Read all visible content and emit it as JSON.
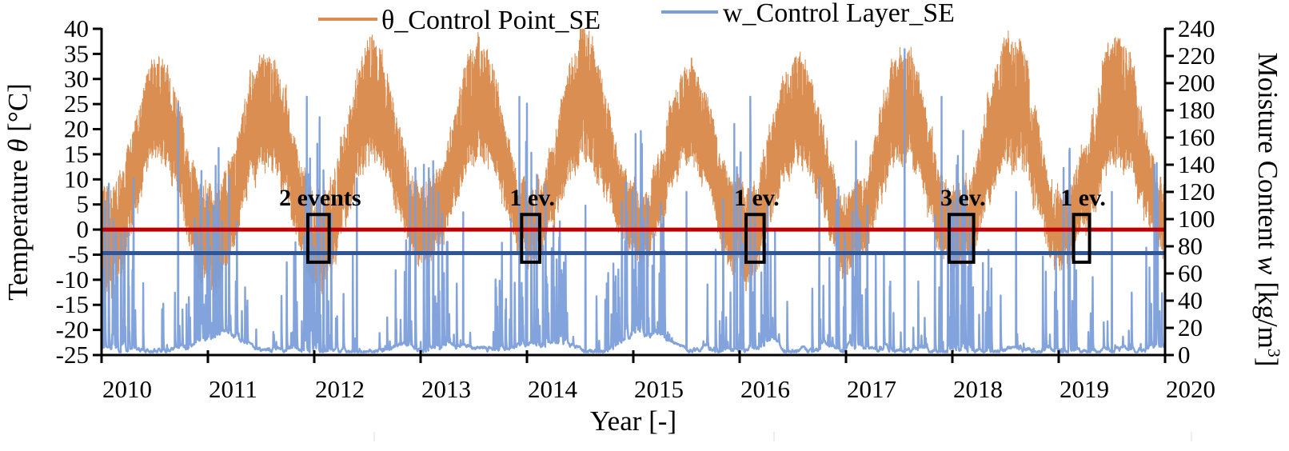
{
  "chart_data": {
    "type": "line",
    "title": "",
    "xlabel": "Year [-]",
    "ylabel_left": {
      "pre": "Temperature ",
      "symbol": "θ",
      "post": " [°C]"
    },
    "ylabel_right": {
      "pre": "Moisture Content ",
      "symbol": "w",
      "post": " [kg/m",
      "sup": "3",
      "end": "]"
    },
    "x_ticks": [
      "2010",
      "2011",
      "2012",
      "2013",
      "2014",
      "2015",
      "2016",
      "2017",
      "2018",
      "2019",
      "2020"
    ],
    "xlim": [
      2010,
      2020
    ],
    "ylim_left": [
      -25,
      40
    ],
    "yticks_left": [
      "40",
      "35",
      "30",
      "25",
      "20",
      "15",
      "10",
      "5",
      "0",
      "-5",
      "-10",
      "-15",
      "-20",
      "-25"
    ],
    "ylim_right": [
      0,
      240
    ],
    "yticks_right": [
      "240",
      "220",
      "200",
      "180",
      "160",
      "140",
      "120",
      "100",
      "80",
      "60",
      "40",
      "20",
      "0"
    ],
    "grid": false,
    "legend_position": "top",
    "series": [
      {
        "name": "θ_Control Point_SE",
        "axis": "left",
        "color": "#DA8E52",
        "annual_summer_peak": [
          33,
          36,
          37,
          37,
          40,
          33,
          35,
          35,
          39,
          39
        ],
        "annual_winter_min": [
          -14,
          -12,
          -11,
          -8,
          -6,
          -6,
          -11,
          -8,
          -8,
          -7,
          -6
        ],
        "summer_daily_min": 13,
        "winter_daily_max": 8
      },
      {
        "name": "w_Control Layer_SE",
        "axis": "right",
        "color": "#7B9ED9",
        "baseline_range": [
          2,
          20
        ],
        "major_peaks": [
          [
            2010.3,
            130
          ],
          [
            2010.72,
            185
          ],
          [
            2011.05,
            110
          ],
          [
            2011.93,
            190
          ],
          [
            2012.05,
            175
          ],
          [
            2012.4,
            130
          ],
          [
            2012.9,
            125
          ],
          [
            2013.4,
            105
          ],
          [
            2013.93,
            190
          ],
          [
            2014.0,
            185
          ],
          [
            2014.55,
            110
          ],
          [
            2015.1,
            100
          ],
          [
            2015.5,
            120
          ],
          [
            2015.95,
            170
          ],
          [
            2016.1,
            190
          ],
          [
            2016.75,
            130
          ],
          [
            2017.2,
            110
          ],
          [
            2017.55,
            225
          ],
          [
            2017.9,
            190
          ],
          [
            2018.1,
            165
          ],
          [
            2018.6,
            120
          ],
          [
            2019.1,
            150
          ],
          [
            2019.5,
            120
          ],
          [
            2019.9,
            140
          ]
        ]
      }
    ],
    "thresholds": [
      {
        "name": "temperature-threshold",
        "axis": "left",
        "value": 0,
        "color": "#C00000"
      },
      {
        "name": "moisture-threshold",
        "axis": "right",
        "value": 75,
        "color": "#2F5597"
      }
    ],
    "annotations": [
      {
        "label": "2 events",
        "x_range": [
          2011.94,
          2012.14
        ],
        "y_range": [
          -6.5,
          3
        ]
      },
      {
        "label": "1 ev.",
        "x_range": [
          2013.95,
          2014.12
        ],
        "y_range": [
          -6.5,
          3
        ]
      },
      {
        "label": "1 ev.",
        "x_range": [
          2016.06,
          2016.23
        ],
        "y_range": [
          -6.5,
          3
        ]
      },
      {
        "label": "3 ev.",
        "x_range": [
          2017.97,
          2018.2
        ],
        "y_range": [
          -6.5,
          3
        ]
      },
      {
        "label": "1 ev.",
        "x_range": [
          2019.14,
          2019.29
        ],
        "y_range": [
          -6.5,
          3
        ]
      }
    ]
  }
}
